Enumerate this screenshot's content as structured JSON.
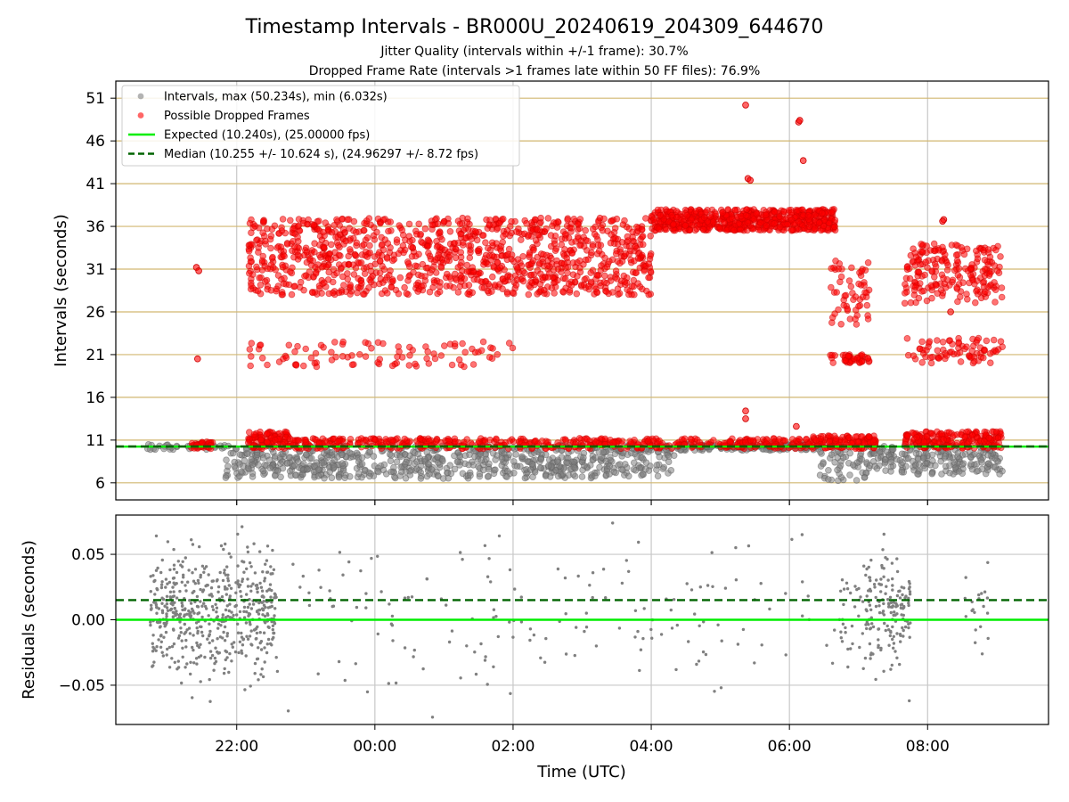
{
  "figure": {
    "title": "Timestamp Intervals - BR000U_20240619_204309_644670",
    "subtitle_1": "Jitter Quality (intervals within +/-1 frame): 30.7%",
    "subtitle_2": "Dropped Frame Rate (intervals >1 frames late within 50 FF files): 76.9%",
    "xlabel": "Time (UTC)"
  },
  "colors": {
    "interval_points": "#808080",
    "dropped_points": "#ff0000",
    "expected_line": "#00ee00",
    "median_line": "#006400",
    "grid_top": "#d2b770",
    "grid_bottom": "#c8c8c8"
  },
  "chart_data": [
    {
      "type": "scatter",
      "panel": "top",
      "ylabel": "Intervals (seconds)",
      "ylim": [
        4,
        53
      ],
      "yticks": [
        6,
        11,
        16,
        21,
        26,
        31,
        36,
        41,
        46,
        51
      ],
      "xlim": [
        "20:15",
        "09:45"
      ],
      "xticks": [
        "22:00",
        "00:00",
        "02:00",
        "04:00",
        "06:00",
        "08:00"
      ],
      "grid": "horizontal at y ticks, vertical at x ticks",
      "legend_position": "upper-left",
      "legend": [
        "Intervals, max (50.234s), min (6.032s)",
        "Possible Dropped Frames",
        "Expected (10.240s), (25.00000 fps)",
        "Median (10.255 +/- 10.624 s), (24.96297 +/- 8.72 fps)"
      ],
      "expected_value": 10.24,
      "median_value": 10.255,
      "interval_clusters": [
        {
          "time_range": [
            "20:40",
            "21:50"
          ],
          "y_range": [
            9.9,
            10.5
          ],
          "density": 0.5
        },
        {
          "time_range": [
            "21:50",
            "04:20"
          ],
          "y_range": [
            6.5,
            10.4
          ],
          "density": 1.8
        },
        {
          "time_range": [
            "04:20",
            "06:25"
          ],
          "y_range": [
            9.8,
            10.5
          ],
          "density": 1.0
        },
        {
          "time_range": [
            "06:25",
            "07:10"
          ],
          "y_range": [
            6.2,
            10.2
          ],
          "density": 1.2
        },
        {
          "time_range": [
            "07:10",
            "09:05"
          ],
          "y_range": [
            7.0,
            10.3
          ],
          "density": 1.6
        }
      ],
      "dropped_clusters": [
        {
          "time_range": [
            "21:20",
            "21:40"
          ],
          "y_range": [
            10.0,
            10.8
          ],
          "density": 2.0
        },
        {
          "time_range": [
            "22:10",
            "22:45"
          ],
          "y_range": [
            10.0,
            12.0
          ],
          "density": 3.0
        },
        {
          "time_range": [
            "22:45",
            "06:20"
          ],
          "y_range": [
            10.0,
            11.2
          ],
          "density": 1.1
        },
        {
          "time_range": [
            "22:10",
            "04:00"
          ],
          "y_range": [
            28.0,
            37.0
          ],
          "density": 3.2
        },
        {
          "time_range": [
            "22:10",
            "02:00"
          ],
          "y_range": [
            19.5,
            22.5
          ],
          "density": 0.4
        },
        {
          "time_range": [
            "04:00",
            "06:40"
          ],
          "y_range": [
            35.5,
            38.0
          ],
          "density": 4.0
        },
        {
          "time_range": [
            "06:35",
            "07:10"
          ],
          "y_range": [
            24.5,
            32.5
          ],
          "density": 1.6
        },
        {
          "time_range": [
            "06:35",
            "07:10"
          ],
          "y_range": [
            20.0,
            21.0
          ],
          "density": 1.2
        },
        {
          "time_range": [
            "06:20",
            "07:15"
          ],
          "y_range": [
            10.0,
            11.5
          ],
          "density": 2.2
        },
        {
          "time_range": [
            "07:40",
            "09:05"
          ],
          "y_range": [
            27.0,
            34.0
          ],
          "density": 2.4
        },
        {
          "time_range": [
            "07:40",
            "09:05"
          ],
          "y_range": [
            20.0,
            23.0
          ],
          "density": 0.9
        },
        {
          "time_range": [
            "07:40",
            "09:05"
          ],
          "y_range": [
            10.0,
            12.0
          ],
          "density": 2.4
        }
      ],
      "dropped_outliers": [
        {
          "x": "21:25",
          "y": 31.2
        },
        {
          "x": "21:27",
          "y": 30.8
        },
        {
          "x": "21:26",
          "y": 20.5
        },
        {
          "x": "05:22",
          "y": 50.2
        },
        {
          "x": "05:24",
          "y": 41.6
        },
        {
          "x": "05:26",
          "y": 41.4
        },
        {
          "x": "06:08",
          "y": 48.2
        },
        {
          "x": "06:09",
          "y": 48.4
        },
        {
          "x": "06:12",
          "y": 43.7
        },
        {
          "x": "05:22",
          "y": 14.4
        },
        {
          "x": "05:22",
          "y": 13.5
        },
        {
          "x": "06:06",
          "y": 12.6
        },
        {
          "x": "08:14",
          "y": 36.8
        },
        {
          "x": "08:13",
          "y": 36.6
        },
        {
          "x": "08:20",
          "y": 26.0
        }
      ]
    },
    {
      "type": "scatter",
      "panel": "bottom",
      "ylabel": "Residuals (seconds)",
      "ylim": [
        -0.08,
        0.08
      ],
      "yticks": [
        0.05,
        0.0,
        -0.05
      ],
      "ytick_labels": [
        "0.05",
        "0.00",
        "−0.05"
      ],
      "xlim": [
        "20:15",
        "09:45"
      ],
      "xticks": [
        "22:00",
        "00:00",
        "02:00",
        "04:00",
        "06:00",
        "08:00"
      ],
      "grid": true,
      "expected_value": 0.0,
      "median_value": 0.015,
      "residual_clusters": [
        {
          "time_range": [
            "20:45",
            "22:35"
          ],
          "y_sd": 0.022,
          "density": 5.0
        },
        {
          "time_range": [
            "22:35",
            "06:30"
          ],
          "y_sd": 0.035,
          "density": 0.35
        },
        {
          "time_range": [
            "06:30",
            "07:05"
          ],
          "y_sd": 0.025,
          "density": 1.0
        },
        {
          "time_range": [
            "07:05",
            "07:45"
          ],
          "y_sd": 0.022,
          "density": 4.0
        },
        {
          "time_range": [
            "08:30",
            "08:55"
          ],
          "y_sd": 0.015,
          "density": 0.8
        }
      ]
    }
  ]
}
